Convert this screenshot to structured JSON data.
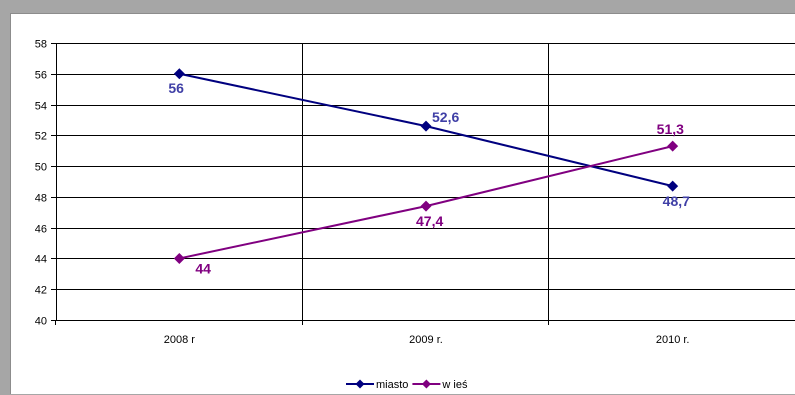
{
  "chart_data": {
    "type": "line",
    "categories": [
      "2008 r",
      "2009 r.",
      "2010 r."
    ],
    "series": [
      {
        "name": "miasto",
        "values": [
          56,
          52.6,
          48.7
        ],
        "labels": [
          "56",
          "52,6",
          "48,7"
        ],
        "color": "#00007f",
        "labelColor": "#3f3fa6"
      },
      {
        "name": "w ieś",
        "values": [
          44,
          47.4,
          51.3
        ],
        "labels": [
          "44",
          "47,4",
          "51,3"
        ],
        "color": "#800080",
        "labelColor": "#800080"
      }
    ],
    "ylim": [
      40,
      58
    ],
    "yticks": [
      "40",
      "42",
      "44",
      "46",
      "48",
      "50",
      "52",
      "54",
      "56",
      "58"
    ],
    "grid": true,
    "legend": "bottom"
  }
}
